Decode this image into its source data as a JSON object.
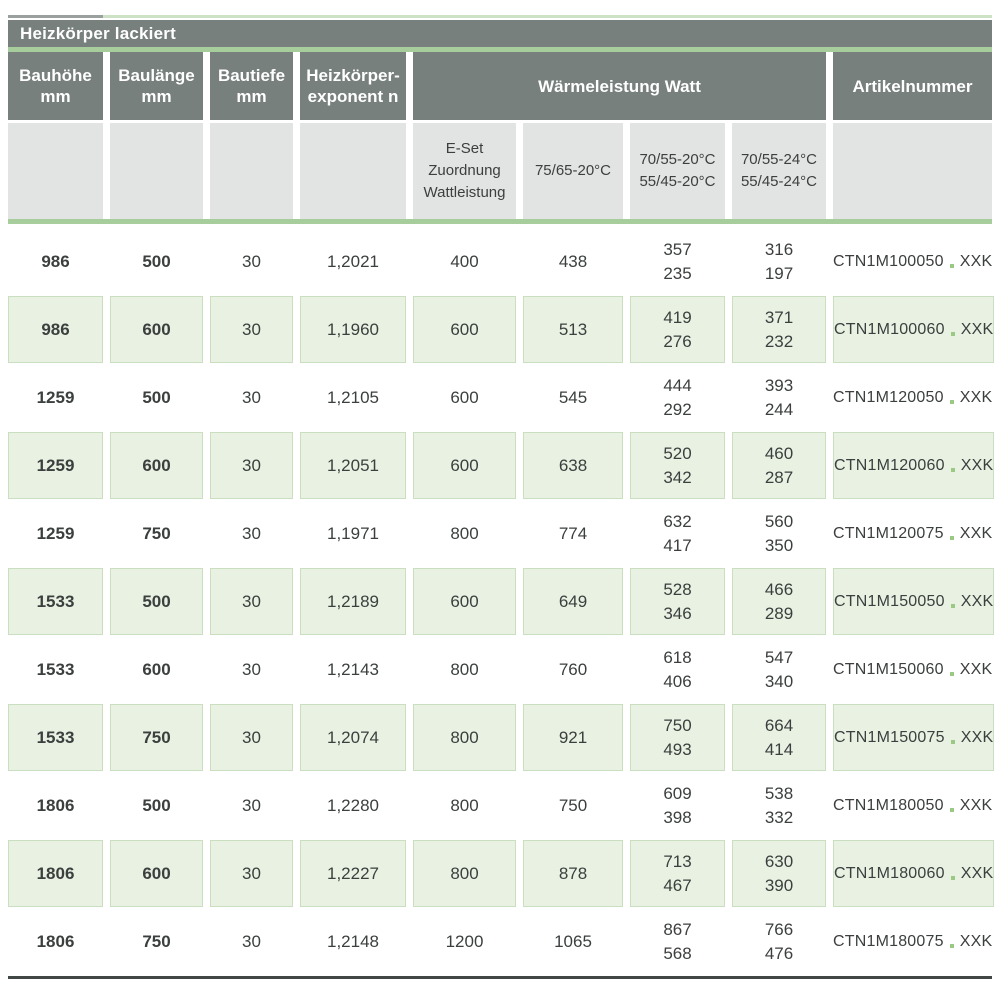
{
  "table": {
    "title": "Heizkörper lackiert",
    "columns": {
      "bauhoehe": [
        "Bauhöhe",
        "mm"
      ],
      "baulaenge": [
        "Baulänge",
        "mm"
      ],
      "bautiefe": [
        "Bautiefe",
        "mm"
      ],
      "exponent": [
        "Heizkörper-",
        "exponent n"
      ],
      "watt_group": "Wärmeleistung Watt",
      "artikelnummer": "Artikelnummer"
    },
    "subcolumns": {
      "eset": [
        "E-Set",
        "Zuordnung",
        "Wattleistung"
      ],
      "c7565": "75/65-20°C",
      "c7055_20": [
        "70/55-20°C",
        "55/45-20°C"
      ],
      "c7055_24": [
        "70/55-24°C",
        "55/45-24°C"
      ]
    },
    "rows": [
      {
        "bauhoehe": "986",
        "baulaenge": "500",
        "bautiefe": "30",
        "exponent": "1,2021",
        "eset": "400",
        "w7565": "438",
        "w20": [
          "357",
          "235"
        ],
        "w24": [
          "316",
          "197"
        ],
        "artikel": "CTN1M100050",
        "suffix": "XXK"
      },
      {
        "bauhoehe": "986",
        "baulaenge": "600",
        "bautiefe": "30",
        "exponent": "1,1960",
        "eset": "600",
        "w7565": "513",
        "w20": [
          "419",
          "276"
        ],
        "w24": [
          "371",
          "232"
        ],
        "artikel": "CTN1M100060",
        "suffix": "XXK"
      },
      {
        "bauhoehe": "1259",
        "baulaenge": "500",
        "bautiefe": "30",
        "exponent": "1,2105",
        "eset": "600",
        "w7565": "545",
        "w20": [
          "444",
          "292"
        ],
        "w24": [
          "393",
          "244"
        ],
        "artikel": "CTN1M120050",
        "suffix": "XXK"
      },
      {
        "bauhoehe": "1259",
        "baulaenge": "600",
        "bautiefe": "30",
        "exponent": "1,2051",
        "eset": "600",
        "w7565": "638",
        "w20": [
          "520",
          "342"
        ],
        "w24": [
          "460",
          "287"
        ],
        "artikel": "CTN1M120060",
        "suffix": "XXK"
      },
      {
        "bauhoehe": "1259",
        "baulaenge": "750",
        "bautiefe": "30",
        "exponent": "1,1971",
        "eset": "800",
        "w7565": "774",
        "w20": [
          "632",
          "417"
        ],
        "w24": [
          "560",
          "350"
        ],
        "artikel": "CTN1M120075",
        "suffix": "XXK"
      },
      {
        "bauhoehe": "1533",
        "baulaenge": "500",
        "bautiefe": "30",
        "exponent": "1,2189",
        "eset": "600",
        "w7565": "649",
        "w20": [
          "528",
          "346"
        ],
        "w24": [
          "466",
          "289"
        ],
        "artikel": "CTN1M150050",
        "suffix": "XXK"
      },
      {
        "bauhoehe": "1533",
        "baulaenge": "600",
        "bautiefe": "30",
        "exponent": "1,2143",
        "eset": "800",
        "w7565": "760",
        "w20": [
          "618",
          "406"
        ],
        "w24": [
          "547",
          "340"
        ],
        "artikel": "CTN1M150060",
        "suffix": "XXK"
      },
      {
        "bauhoehe": "1533",
        "baulaenge": "750",
        "bautiefe": "30",
        "exponent": "1,2074",
        "eset": "800",
        "w7565": "921",
        "w20": [
          "750",
          "493"
        ],
        "w24": [
          "664",
          "414"
        ],
        "artikel": "CTN1M150075",
        "suffix": "XXK"
      },
      {
        "bauhoehe": "1806",
        "baulaenge": "500",
        "bautiefe": "30",
        "exponent": "1,2280",
        "eset": "800",
        "w7565": "750",
        "w20": [
          "609",
          "398"
        ],
        "w24": [
          "538",
          "332"
        ],
        "artikel": "CTN1M180050",
        "suffix": "XXK"
      },
      {
        "bauhoehe": "1806",
        "baulaenge": "600",
        "bautiefe": "30",
        "exponent": "1,2227",
        "eset": "800",
        "w7565": "878",
        "w20": [
          "713",
          "467"
        ],
        "w24": [
          "630",
          "390"
        ],
        "artikel": "CTN1M180060",
        "suffix": "XXK"
      },
      {
        "bauhoehe": "1806",
        "baulaenge": "750",
        "bautiefe": "30",
        "exponent": "1,2148",
        "eset": "1200",
        "w7565": "1065",
        "w20": [
          "867",
          "568"
        ],
        "w24": [
          "766",
          "476"
        ],
        "artikel": "CTN1M180075",
        "suffix": "XXK"
      }
    ],
    "colors": {
      "header_gray": "#77807d",
      "subheader_gray": "#e2e3e3",
      "row_green": "#e9f1e3",
      "row_green_border": "#cadfc0",
      "accent_green_line": "#a6cd9b",
      "dot_green": "#9ac985",
      "text": "#3b3f3e",
      "bottom_line": "#414744"
    }
  }
}
